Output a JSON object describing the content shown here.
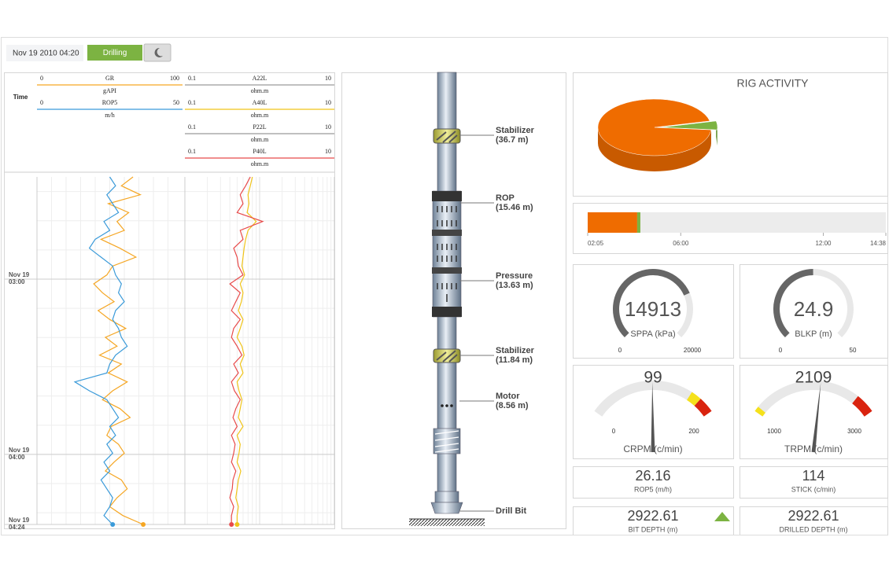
{
  "header": {
    "timestamp": "Nov 19 2010 04:20",
    "status": "Drilling"
  },
  "log": {
    "time_label": "Time",
    "ylim": [
      145,
      264
    ],
    "yticks": [
      {
        "value": 180,
        "label": [
          "Nov 19",
          "03:00"
        ]
      },
      {
        "value": 240,
        "label": [
          "Nov 19",
          "04:00"
        ]
      },
      {
        "value": 264,
        "label": [
          "Nov 19",
          "04:24"
        ]
      }
    ],
    "tracks": [
      {
        "scale": "linear",
        "curves": [
          {
            "name": "GR",
            "unit": "gAPI",
            "min": 0,
            "max": 100,
            "color": "#f5a623",
            "values": [
              66,
              58,
              71,
              49,
              63,
              55,
              60,
              44,
              57,
              68,
              52,
              48,
              39,
              45,
              53,
              42,
              50,
              61,
              47,
              55,
              43,
              58,
              49,
              62,
              52,
              45,
              57,
              64,
              51,
              48,
              56,
              60,
              53,
              47,
              58,
              62,
              55,
              50,
              59,
              73
            ]
          },
          {
            "name": "ROP5",
            "unit": "m/h",
            "min": 0,
            "max": 50,
            "color": "#3a9ad9",
            "values": [
              25,
              27,
              24,
              26,
              28,
              23,
              25,
              20,
              18,
              22,
              26,
              27,
              29,
              28,
              30,
              27,
              26,
              28,
              29,
              31,
              27,
              25,
              24,
              13,
              18,
              24,
              26,
              28,
              25,
              27,
              24,
              26,
              23,
              25,
              22,
              24,
              26,
              25,
              23,
              26
            ]
          }
        ]
      },
      {
        "scale": "log",
        "curves": [
          {
            "name": "A22L",
            "unit": "ohm.m",
            "min": 0.1,
            "max": 10,
            "color": "#9a9a9a"
          },
          {
            "name": "A40L",
            "unit": "ohm.m",
            "min": 0.1,
            "max": 10,
            "color": "#f0c419",
            "values": [
              0.8,
              0.75,
              0.7,
              0.72,
              0.68,
              0.9,
              0.7,
              0.65,
              0.62,
              0.6,
              0.58,
              0.63,
              0.55,
              0.6,
              0.57,
              0.52,
              0.6,
              0.55,
              0.5,
              0.58,
              0.62,
              0.55,
              0.6,
              0.5,
              0.53,
              0.58,
              0.55,
              0.52,
              0.6,
              0.5,
              0.55,
              0.53,
              0.5,
              0.56,
              0.52,
              0.5,
              0.48,
              0.52,
              0.5,
              0.5
            ]
          },
          {
            "name": "P22L",
            "unit": "ohm.m",
            "min": 0.1,
            "max": 10,
            "color": "#9a9a9a"
          },
          {
            "name": "P40L",
            "unit": "ohm.m",
            "min": 0.1,
            "max": 10,
            "color": "#e84a4a",
            "values": [
              0.75,
              0.65,
              0.55,
              0.6,
              0.5,
              1.1,
              0.55,
              0.6,
              0.45,
              0.5,
              0.52,
              0.6,
              0.4,
              0.55,
              0.48,
              0.42,
              0.55,
              0.45,
              0.42,
              0.5,
              0.58,
              0.45,
              0.52,
              0.42,
              0.46,
              0.55,
              0.48,
              0.44,
              0.5,
              0.42,
              0.47,
              0.45,
              0.42,
              0.48,
              0.44,
              0.43,
              0.4,
              0.45,
              0.42,
              0.42
            ]
          }
        ]
      }
    ]
  },
  "tool": {
    "components": [
      {
        "name": "Stabilizer",
        "offset": "(36.7 m)"
      },
      {
        "name": "ROP",
        "offset": "(15.46 m)"
      },
      {
        "name": "Pressure",
        "offset": "(13.63 m)"
      },
      {
        "name": "Stabilizer",
        "offset": "(11.84 m)"
      },
      {
        "name": "Motor",
        "offset": "(8.56 m)"
      },
      {
        "name": "Drill Bit"
      }
    ]
  },
  "rig_activity": {
    "type": "pie",
    "title": "RIG ACTIVITY",
    "slices": [
      {
        "color": "#ef6c00",
        "value": 95
      },
      {
        "color": "#7cb342",
        "value": 5
      }
    ]
  },
  "timeline": {
    "type": "stacked-bar",
    "xlim": [
      125,
      878
    ],
    "xticks": [
      {
        "value": 125,
        "label": "02:05"
      },
      {
        "value": 360,
        "label": "06:00"
      },
      {
        "value": 720,
        "label": "12:00"
      },
      {
        "value": 878,
        "label": "14:38"
      }
    ],
    "segments": [
      {
        "color": "#ef6c00",
        "value": 125
      },
      {
        "color": "#7cb342",
        "value": 8
      }
    ]
  },
  "gauges": [
    {
      "style": "arc",
      "value": 14913,
      "label": "SPPA (kPa)",
      "min": 0,
      "max": 20000
    },
    {
      "style": "arc",
      "value": 24.9,
      "label": "BLKP (m)",
      "min": 0,
      "max": 50
    },
    {
      "style": "needle",
      "value": 99,
      "label": "CRPM (c/min)",
      "min": 0,
      "max": 200,
      "zones": [
        {
          "from": 160,
          "to": 176,
          "color": "#f5e11b"
        },
        {
          "from": 176,
          "to": 200,
          "color": "#d9230f"
        }
      ]
    },
    {
      "style": "needle",
      "value": 2109,
      "label": "TRPM (c/min)",
      "min": 1000,
      "max": 3000,
      "zones": [
        {
          "from": 1000,
          "to": 1080,
          "color": "#f5e11b"
        },
        {
          "from": 2700,
          "to": 3000,
          "color": "#d9230f"
        }
      ]
    }
  ],
  "readouts": [
    {
      "value": 26.16,
      "label": "ROP5 (m/h)"
    },
    {
      "value": 114,
      "label": "STICK (c/min)"
    },
    {
      "value": 2922.61,
      "label": "BIT DEPTH (m)",
      "trend": "up"
    },
    {
      "value": 2922.61,
      "label": "DRILLED DEPTH (m)"
    }
  ]
}
